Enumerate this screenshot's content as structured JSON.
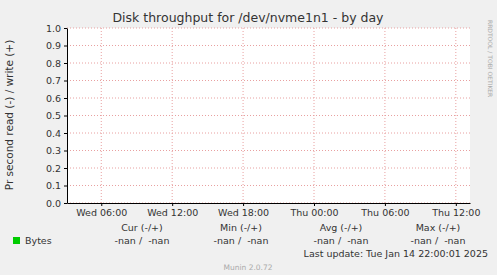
{
  "chart_data": {
    "type": "line",
    "title": "Disk throughput for /dev/nvme1n1 - by day",
    "y_label": "Pr second read (-) / write (+)",
    "xlim": [
      3.1,
      37.2
    ],
    "xticks": [
      {
        "value": 6,
        "label": "Wed 06:00"
      },
      {
        "value": 12,
        "label": "Wed 12:00"
      },
      {
        "value": 18,
        "label": "Wed 18:00"
      },
      {
        "value": 24,
        "label": "Thu 00:00"
      },
      {
        "value": 30,
        "label": "Thu 06:00"
      },
      {
        "value": 36,
        "label": "Thu 12:00"
      }
    ],
    "ylim": [
      0,
      1
    ],
    "yticks": [
      {
        "value": 0,
        "label": "0.0"
      },
      {
        "value": 0.1,
        "label": "0.1"
      },
      {
        "value": 0.2,
        "label": "0.2"
      },
      {
        "value": 0.3,
        "label": "0.3"
      },
      {
        "value": 0.4,
        "label": "0.4"
      },
      {
        "value": 0.5,
        "label": "0.5"
      },
      {
        "value": 0.6,
        "label": "0.6"
      },
      {
        "value": 0.7,
        "label": "0.7"
      },
      {
        "value": 0.8,
        "label": "0.8"
      },
      {
        "value": 0.9,
        "label": "0.9"
      },
      {
        "value": 1,
        "label": "1.0"
      }
    ],
    "grid": true,
    "x": [],
    "series": [
      {
        "name": "Bytes",
        "color": "#00cc00",
        "values": [],
        "stat_values": [
          "-nan /  -nan",
          "-nan /  -nan",
          "-nan /  -nan",
          "-nan /  -nan"
        ]
      }
    ],
    "stat_headers": [
      "Cur (-/+)",
      "Min (-/+)",
      "Avg (-/+)",
      "Max (-/+)"
    ],
    "last_update": "Last update: Tue Jan 14 22:00:01 2025",
    "footer": "Munin 2.0.72",
    "side_label": "RRDTOOL / TOBI OETIKER"
  }
}
